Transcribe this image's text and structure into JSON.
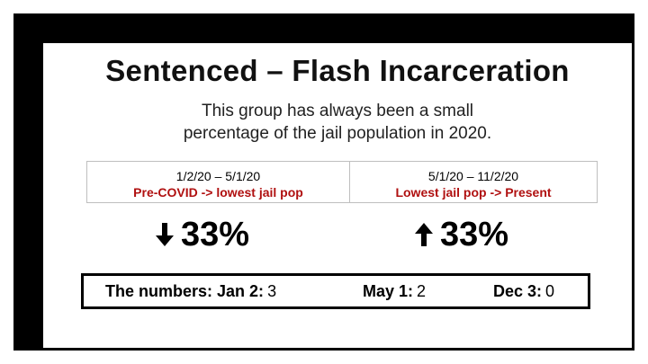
{
  "title": "Sentenced – Flash Incarceration",
  "subtitle": {
    "line1": "This group has always been a small",
    "line2": "percentage of the jail population in 2020."
  },
  "periods": [
    {
      "dates": "1/2/20 – 5/1/20",
      "description": "Pre-COVID -> lowest jail pop",
      "direction": "down",
      "change": "33%"
    },
    {
      "dates": "5/1/20 – 11/2/20",
      "description": "Lowest jail pop -> Present",
      "direction": "up",
      "change": "33%"
    }
  ],
  "numbers": {
    "label": "The numbers:",
    "items": [
      {
        "date": "Jan 2:",
        "value": "3"
      },
      {
        "date": "May 1:",
        "value": "2"
      },
      {
        "date": "Dec 3:",
        "value": "0"
      }
    ]
  },
  "colors": {
    "frame": "#000000",
    "accent": "#b01010",
    "text": "#111111"
  },
  "icons": {
    "down": "arrow-down-icon",
    "up": "arrow-up-icon"
  }
}
